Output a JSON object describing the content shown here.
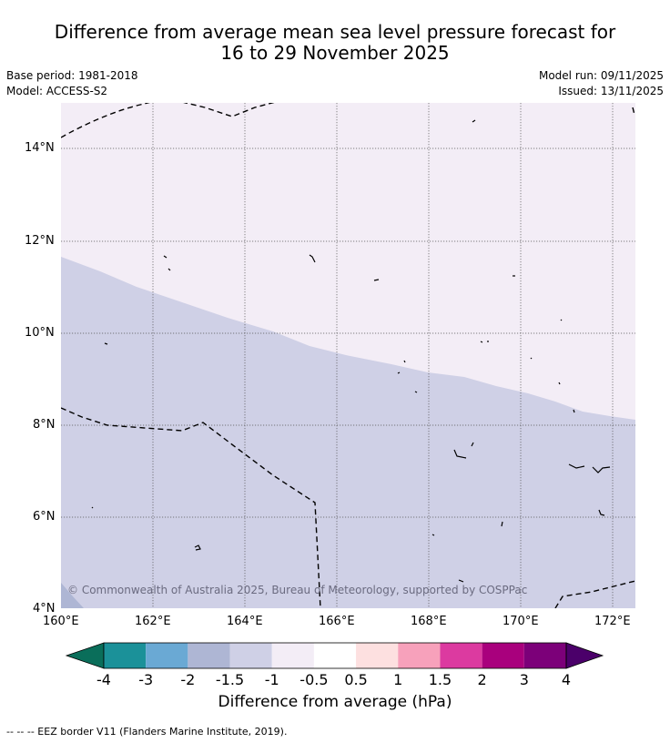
{
  "title_line1": "Difference from average mean sea level pressure forecast for",
  "title_line2": "16 to 29 November 2025",
  "base_period": "Base period: 1981-2018",
  "model": "Model: ACCESS-S2",
  "model_run": "Model run: 09/11/2025",
  "issued": "Issued: 13/11/2025",
  "copyright": "© Commonwealth of Australia 2025, Bureau of Meteorology, supported by COSPPac",
  "legend_note": "--  --  -- EEZ border V11 (Flanders Marine Institute, 2019).",
  "colorbar": {
    "title": "Difference from average (hPa)",
    "tick_labels": [
      "-4",
      "-3",
      "-2",
      "-1.5",
      "-1",
      "-0.5",
      "0.5",
      "1",
      "1.5",
      "2",
      "3",
      "4"
    ],
    "colors": [
      "#0a6e5a",
      "#1b9199",
      "#6aa9d4",
      "#aeb6d4",
      "#cfd0e6",
      "#f3edf6",
      "#ffffff",
      "#fde0e0",
      "#f7a1bb",
      "#dc3aa0",
      "#a9007d",
      "#7c0079",
      "#4b006a"
    ]
  },
  "map": {
    "lat_labels": [
      "14°N",
      "12°N",
      "10°N",
      "8°N",
      "6°N",
      "4°N"
    ],
    "lon_labels": [
      "160°E",
      "162°E",
      "164°E",
      "166°E",
      "168°E",
      "170°E",
      "172°E"
    ],
    "lat_range": [
      4,
      15
    ],
    "lon_range": [
      160,
      172.5
    ],
    "region_colors": {
      "north": "#f3edf6",
      "south": "#cfd0e6",
      "corner": "#aeb6d4"
    }
  }
}
